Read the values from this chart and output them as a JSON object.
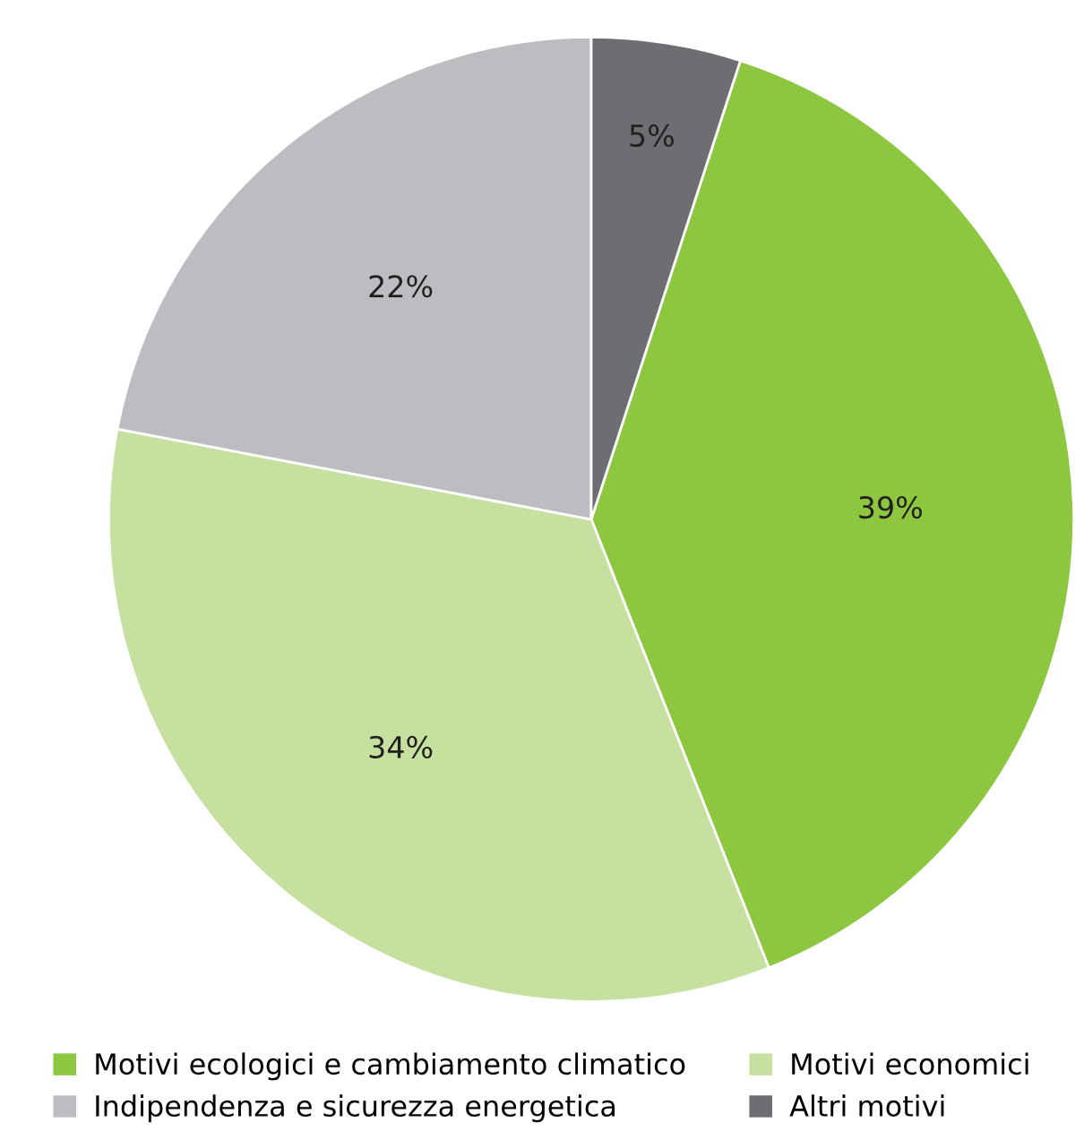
{
  "chart_data": {
    "type": "pie",
    "categories": [
      "Motivi ecologici e cambiamento climatico",
      "Motivi economici",
      "Indipendenza e sicurezza energetica",
      "Altri motivi"
    ],
    "values": [
      39,
      34,
      22,
      5
    ],
    "colors": [
      "#8dc63f",
      "#c6e0a0",
      "#bcbdc1",
      "#6d6e72"
    ],
    "value_labels": [
      "39%",
      "34%",
      "22%",
      "5%"
    ],
    "legend": "bottom"
  }
}
